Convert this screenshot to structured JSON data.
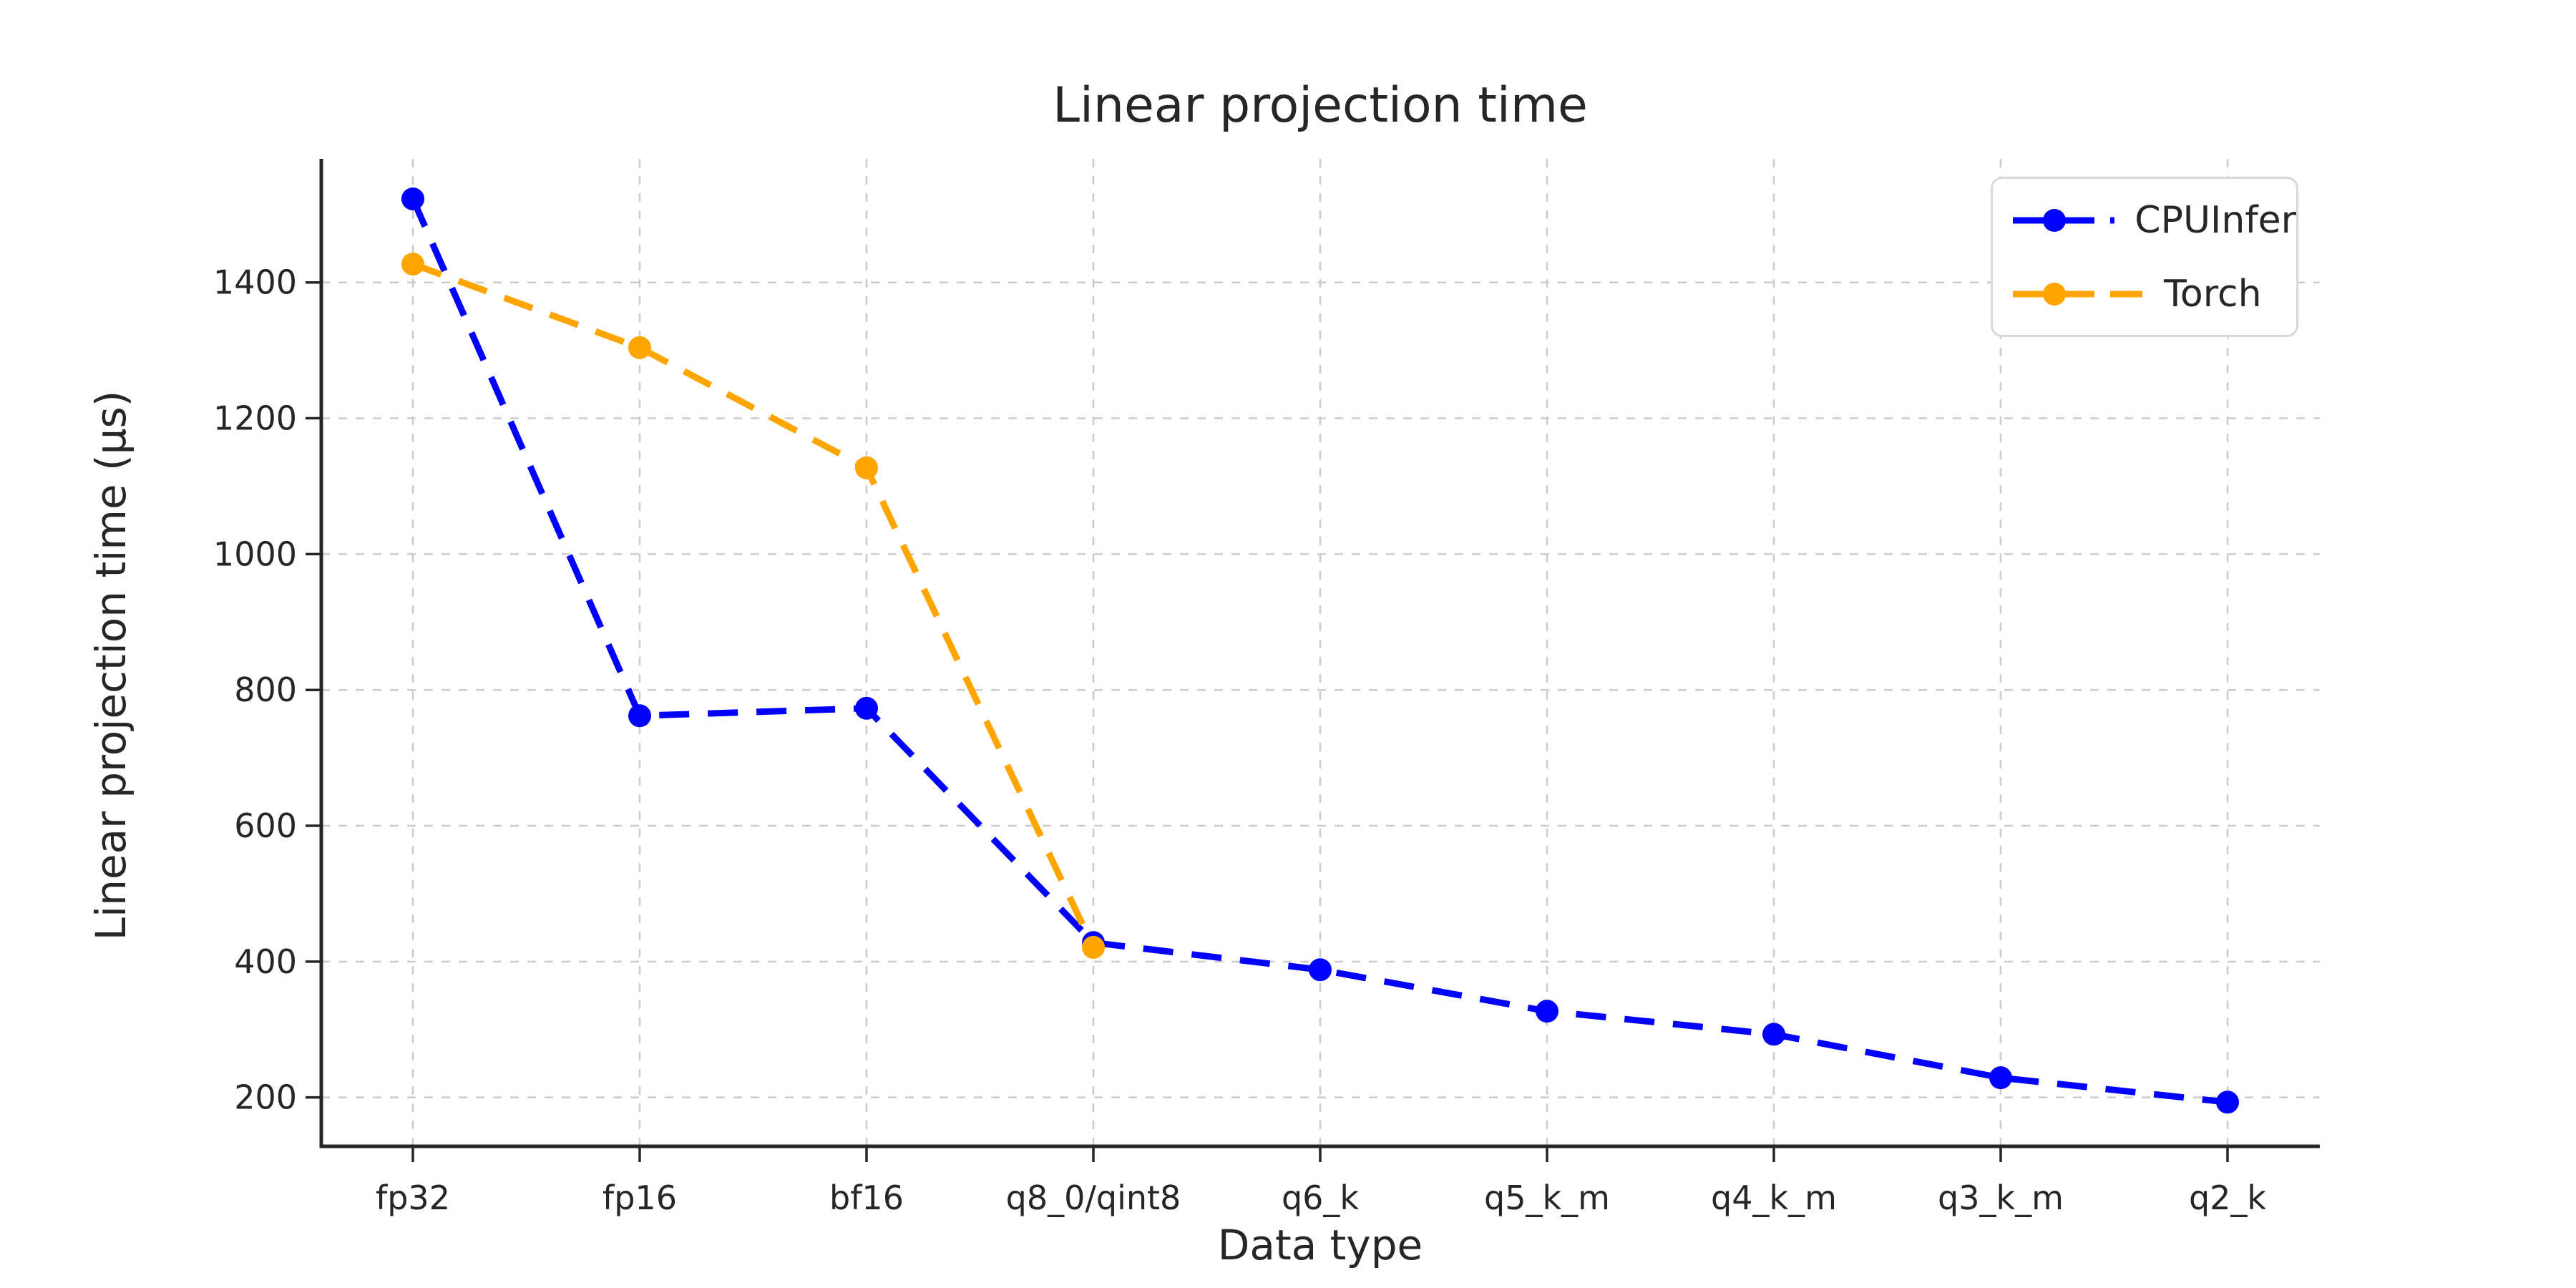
{
  "chart_data": {
    "type": "line",
    "title": "Linear projection time",
    "xlabel": "Data type",
    "ylabel": "Linear projection time (μs)",
    "categories": [
      "fp32",
      "fp16",
      "bf16",
      "q8_0/qint8",
      "q6_k",
      "q5_k_m",
      "q4_k_m",
      "q3_k_m",
      "q2_k"
    ],
    "series": [
      {
        "name": "CPUInfer",
        "color": "#0000ff",
        "values": [
          1523,
          762,
          773,
          428,
          388,
          327,
          293,
          229,
          193
        ]
      },
      {
        "name": "Torch",
        "color": "#ffa500",
        "values": [
          1427,
          1304,
          1127,
          421,
          null,
          null,
          null,
          null,
          null
        ]
      }
    ],
    "ylim": [
      128,
      1582
    ],
    "yticks": [
      200,
      400,
      600,
      800,
      1000,
      1200,
      1400
    ],
    "grid": true,
    "grid_color": "#cccccc",
    "line_style": "dashed",
    "marker": "circle",
    "legend_position": "upper right",
    "text_color": "#262626",
    "spine_color": "#262626"
  }
}
